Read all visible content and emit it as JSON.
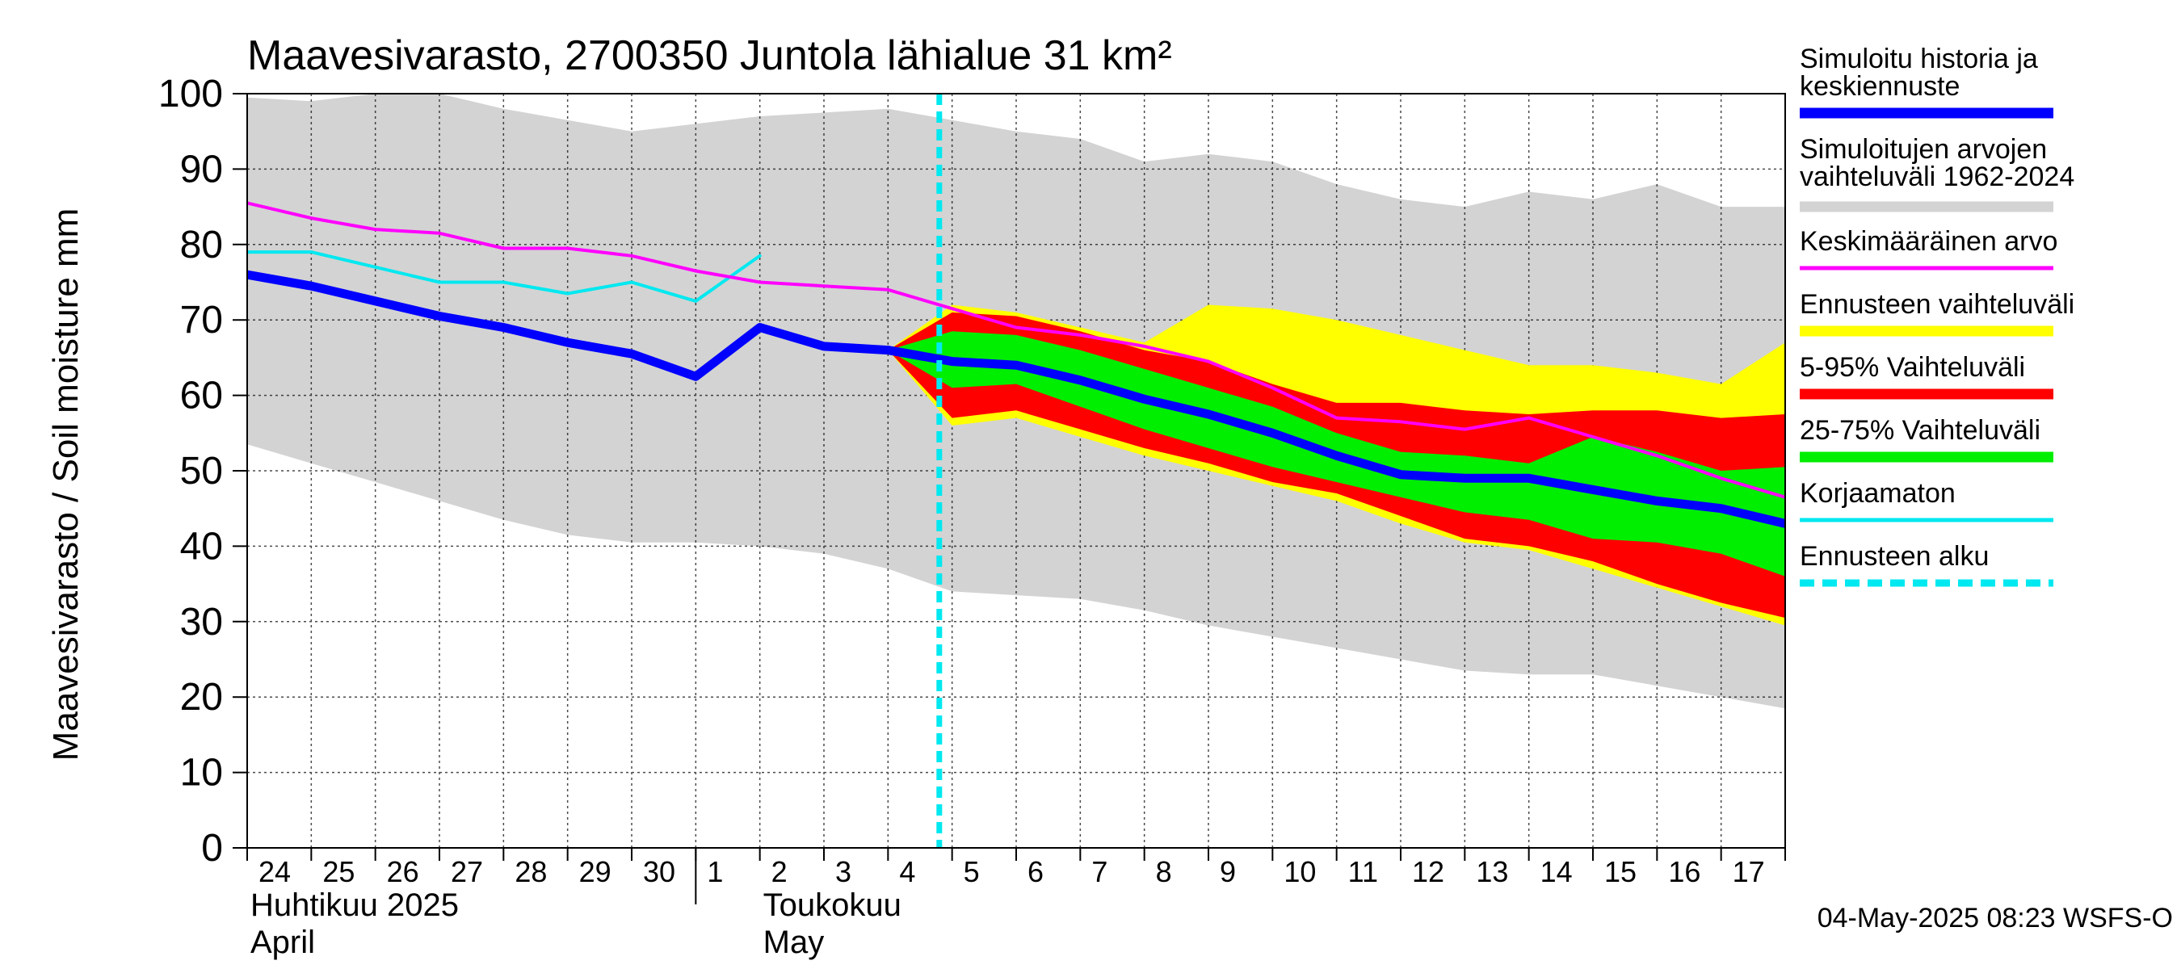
{
  "chart_data": {
    "type": "area",
    "title": "Maavesivarasto, 2700350 Juntola lähialue 31 km²",
    "ylabel": "Maavesivarasto / Soil moisture   mm",
    "ylim": [
      0,
      100
    ],
    "yticks": [
      0,
      10,
      20,
      30,
      40,
      50,
      60,
      70,
      80,
      90,
      100
    ],
    "x_day_labels": [
      "24",
      "25",
      "26",
      "27",
      "28",
      "29",
      "30",
      "1",
      "2",
      "3",
      "4",
      "5",
      "6",
      "7",
      "8",
      "9",
      "10",
      "11",
      "12",
      "13",
      "14",
      "15",
      "16",
      "17"
    ],
    "month_labels": [
      {
        "fi": "Huhtikuu  2025",
        "en": "April"
      },
      {
        "fi": "Toukokuu",
        "en": "May"
      }
    ],
    "forecast_start_day": 10.8,
    "timestamp": "04-May-2025 08:23 WSFS-O",
    "colors": {
      "history": "#0000ff",
      "range": "#d3d3d3",
      "mean": "#ff00ff",
      "forecast_range": "#ffff00",
      "p5_95": "#ff0000",
      "p25_75": "#00ee00",
      "uncorrected": "#00e8f0",
      "forecast_start": "#00e8f0"
    },
    "legend": [
      {
        "label": "Simuloitu historia ja keskiennuste",
        "lines": [
          "Simuloitu historia ja",
          "keskiennuste"
        ],
        "key": "history"
      },
      {
        "label": "Simuloitujen arvojen vaihteluväli 1962-2024",
        "lines": [
          "Simuloitujen arvojen",
          "vaihteluväli 1962-2024"
        ],
        "key": "range"
      },
      {
        "label": "Keskimääräinen arvo",
        "lines": [
          "Keskimääräinen arvo"
        ],
        "key": "mean"
      },
      {
        "label": "Ennusteen vaihteluväli",
        "lines": [
          "Ennusteen vaihteluväli"
        ],
        "key": "forecast_range"
      },
      {
        "label": "5-95% Vaihteluväli",
        "lines": [
          "5-95% Vaihteluväli"
        ],
        "key": "p5_95"
      },
      {
        "label": "25-75% Vaihteluväli",
        "lines": [
          "25-75% Vaihteluväli"
        ],
        "key": "p25_75"
      },
      {
        "label": "Korjaamaton",
        "lines": [
          "Korjaamaton"
        ],
        "key": "uncorrected"
      },
      {
        "label": "Ennusteen alku",
        "lines": [
          "Ennusteen alku"
        ],
        "key": "forecast_start"
      }
    ],
    "series": {
      "range_band": {
        "x": [
          0,
          1,
          2,
          3,
          4,
          5,
          6,
          7,
          8,
          9,
          10,
          11,
          12,
          13,
          14,
          15,
          16,
          17,
          18,
          19,
          20,
          21,
          22,
          23,
          24
        ],
        "upper": [
          99.5,
          99,
          100,
          100,
          98,
          96.5,
          95,
          96,
          97,
          97.5,
          98,
          96.5,
          95,
          94,
          91,
          92,
          91,
          88,
          86,
          85,
          87,
          86,
          88,
          85,
          85
        ],
        "lower": [
          53.5,
          51,
          48.5,
          46,
          43.5,
          41.5,
          40.5,
          40.5,
          40,
          39,
          37,
          34,
          33.5,
          33,
          31.5,
          29.5,
          28,
          26.5,
          25,
          23.5,
          23,
          23,
          21.5,
          20,
          18.5
        ]
      },
      "forecast_range": {
        "x": [
          10,
          11,
          12,
          13,
          14,
          15,
          16,
          17,
          18,
          19,
          20,
          21,
          22,
          23,
          24
        ],
        "upper": [
          66,
          72,
          71,
          69,
          67,
          72,
          71.5,
          70,
          68,
          66,
          64,
          64,
          63,
          61.5,
          67
        ],
        "lower": [
          66,
          56,
          57,
          54.5,
          52,
          50,
          48,
          46,
          43,
          40.5,
          39.5,
          37,
          34.5,
          32,
          29.5
        ]
      },
      "p5_95": {
        "x": [
          10,
          11,
          12,
          13,
          14,
          15,
          16,
          17,
          18,
          19,
          20,
          21,
          22,
          23,
          24
        ],
        "upper": [
          66,
          71,
          70.5,
          68.5,
          66,
          64.5,
          61.5,
          59,
          59,
          58,
          57.5,
          58,
          58,
          57,
          57.5
        ],
        "lower": [
          66,
          57,
          58,
          55.5,
          53,
          51,
          48.5,
          47,
          44,
          41,
          40,
          38,
          35,
          32.5,
          30.5
        ]
      },
      "p25_75": {
        "x": [
          10,
          11,
          12,
          13,
          14,
          15,
          16,
          17,
          18,
          19,
          20,
          21,
          22,
          23,
          24
        ],
        "upper": [
          66,
          68.5,
          68,
          66,
          63.5,
          61,
          58.5,
          55,
          52.5,
          52,
          51,
          54.5,
          52.5,
          50,
          50.5
        ],
        "lower": [
          66,
          61,
          61.5,
          58.5,
          55.5,
          53,
          50.5,
          48.5,
          46.5,
          44.5,
          43.5,
          41,
          40.5,
          39,
          36
        ]
      },
      "mean": {
        "x": [
          0,
          1,
          2,
          3,
          4,
          5,
          6,
          7,
          8,
          9,
          10,
          11,
          12,
          13,
          14,
          15,
          16,
          17,
          18,
          19,
          20,
          21,
          22,
          23,
          24
        ],
        "values": [
          85.5,
          83.5,
          82,
          81.5,
          79.5,
          79.5,
          78.5,
          76.5,
          75,
          74.5,
          74,
          71.5,
          69,
          68,
          66.5,
          64.5,
          61,
          57,
          56.5,
          55.5,
          57,
          54.5,
          52,
          49,
          46.5
        ]
      },
      "history": {
        "x": [
          0,
          1,
          2,
          3,
          4,
          5,
          6,
          7,
          8,
          9,
          10,
          11,
          12,
          13,
          14,
          15,
          16,
          17,
          18,
          19,
          20,
          21,
          22,
          23,
          24
        ],
        "values": [
          76,
          74.5,
          72.5,
          70.5,
          69,
          67,
          65.5,
          62.5,
          69,
          66.5,
          66,
          64.5,
          64,
          62,
          59.5,
          57.5,
          55,
          52,
          49.5,
          49,
          49,
          47.5,
          46,
          45,
          43
        ]
      },
      "uncorrected": {
        "x": [
          0,
          1,
          2,
          3,
          4,
          5,
          6,
          7,
          8
        ],
        "values": [
          79,
          79,
          77,
          75,
          75,
          73.5,
          75,
          72.5,
          78.5
        ]
      }
    }
  }
}
